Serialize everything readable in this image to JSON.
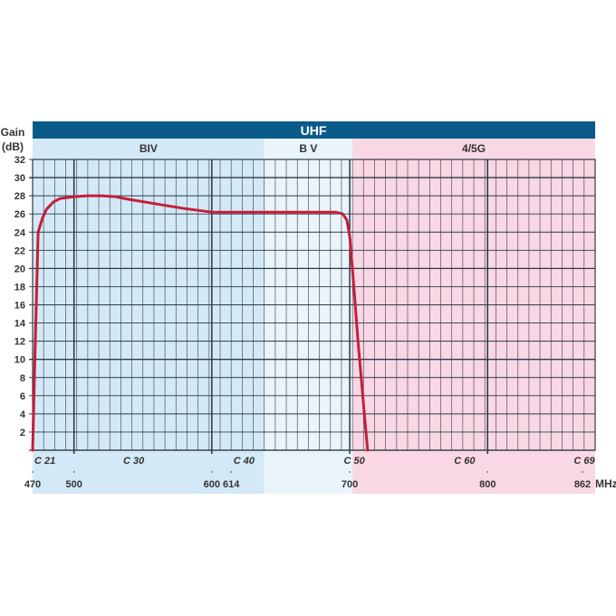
{
  "chart_data": {
    "type": "line",
    "title": "UHF",
    "ylabel": "Gain (dB)",
    "xlabel": "MHz",
    "ylim": [
      0,
      32
    ],
    "xlim": [
      470,
      878
    ],
    "y_ticks": [
      2,
      4,
      6,
      8,
      10,
      12,
      14,
      16,
      18,
      20,
      22,
      24,
      26,
      28,
      30,
      32
    ],
    "x_ticks": [
      470,
      500,
      600,
      614,
      700,
      800,
      862
    ],
    "channel_labels": [
      {
        "label": "C 21",
        "mhz": 470
      },
      {
        "label": "C 30",
        "mhz": 542
      },
      {
        "label": "C 40",
        "mhz": 622
      },
      {
        "label": "C 50",
        "mhz": 702
      },
      {
        "label": "C 60",
        "mhz": 782
      },
      {
        "label": "C 69",
        "mhz": 854
      }
    ],
    "bands": [
      {
        "label": "BIV",
        "from": 470,
        "to": 638,
        "color": "#d3e9f7"
      },
      {
        "label": "B V",
        "from": 638,
        "to": 702,
        "color": "#e9f4fb"
      },
      {
        "label": "4/5G",
        "from": 702,
        "to": 878,
        "color": "#f9d7e4"
      }
    ],
    "grid": true,
    "series": [
      {
        "name": "Gain",
        "color": "#c41e3a",
        "x": [
          470,
          472,
          474,
          477,
          480,
          485,
          490,
          500,
          510,
          520,
          530,
          540,
          560,
          580,
          600,
          620,
          640,
          660,
          680,
          690,
          695,
          698,
          700,
          703,
          706,
          710,
          713
        ],
        "y": [
          0,
          12,
          24,
          25.5,
          26.5,
          27.3,
          27.7,
          27.9,
          28.0,
          28.0,
          27.9,
          27.6,
          27.1,
          26.6,
          26.2,
          26.2,
          26.2,
          26.2,
          26.2,
          26.2,
          26.0,
          25.3,
          23.5,
          18,
          12,
          5,
          0
        ]
      }
    ]
  },
  "header": {
    "title": "UHF",
    "gain_label": "Gain",
    "unit_label": "(dB)",
    "mhz_label": "MHz"
  },
  "colors": {
    "header_bar": "#0a5b8a",
    "curve": "#c41e3a",
    "grid": "#2d3a45"
  }
}
